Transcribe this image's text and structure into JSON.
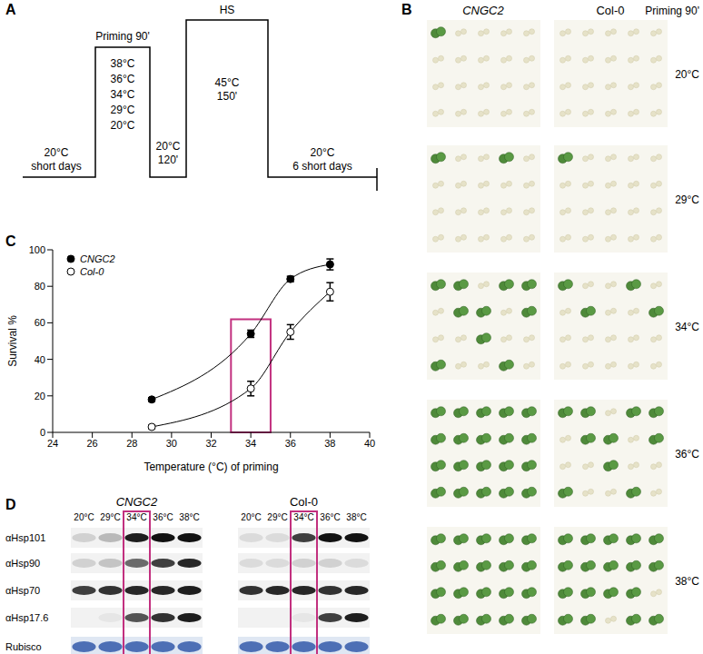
{
  "panel_a": {
    "label": "A",
    "start": [
      "20°C",
      "short days"
    ],
    "priming_title": "Priming 90'",
    "priming_temps": [
      "38°C",
      "36°C",
      "34°C",
      "29°C",
      "20°C"
    ],
    "recovery": [
      "20°C",
      "120'"
    ],
    "hs_title": "HS",
    "hs": [
      "45°C",
      "150'"
    ],
    "end": [
      "20°C",
      "6 short days"
    ]
  },
  "panel_b": {
    "label": "B",
    "columns": [
      "CNGC2",
      "Col-0"
    ],
    "header": "Priming 90'",
    "rows": [
      "20°C",
      "29°C",
      "34°C",
      "36°C",
      "38°C"
    ],
    "green_share": [
      [
        0.05,
        0
      ],
      [
        0.1,
        0.05
      ],
      [
        0.5,
        0.2
      ],
      [
        1,
        0.5
      ],
      [
        1,
        0.9
      ]
    ]
  },
  "panel_c": {
    "label": "C"
  },
  "chart_data": {
    "type": "line",
    "x_label": "Temperature (°C) of priming",
    "y_label": "Survival %",
    "xlim": [
      24,
      40
    ],
    "xticks": [
      24,
      26,
      28,
      30,
      32,
      34,
      36,
      38,
      40
    ],
    "ylim": [
      0,
      100
    ],
    "yticks": [
      0,
      20,
      40,
      60,
      80,
      100
    ],
    "legend": "upper left",
    "x": [
      29,
      34,
      36,
      38
    ],
    "series": [
      {
        "name": "CNGC2",
        "color": "#000000",
        "marker": "circle",
        "values": [
          18,
          54,
          84,
          92
        ],
        "errors": [
          1,
          2,
          1.5,
          3
        ]
      },
      {
        "name": "Col-0",
        "color": "#000000",
        "marker": "open_circle",
        "values": [
          3,
          24,
          55,
          77
        ],
        "errors": [
          1,
          4,
          4,
          5
        ]
      }
    ],
    "highlight": {
      "x": [
        33,
        35
      ],
      "y": [
        0,
        62
      ],
      "color": "#c2307f"
    }
  },
  "panel_d": {
    "label": "D",
    "genotypes": [
      "CNGC2",
      "Col-0"
    ],
    "lanes": [
      "20°C",
      "29°C",
      "34°C",
      "36°C",
      "38°C"
    ],
    "highlight_lane": "34°C",
    "rows": [
      "αHsp101",
      "αHsp90",
      "αHsp70",
      "αHsp17.6",
      "Rubisco"
    ],
    "intensities": [
      [
        [
          0.15,
          0.25,
          0.95,
          1,
          1
        ],
        [
          0.15,
          0.2,
          0.6,
          0.8,
          0.9
        ],
        [
          0.8,
          0.85,
          0.9,
          0.9,
          0.95
        ],
        [
          0,
          0.05,
          0.7,
          0.85,
          0.95
        ],
        [
          1,
          1,
          1,
          1,
          1
        ]
      ],
      [
        [
          0.1,
          0.1,
          0.8,
          1,
          1
        ],
        [
          0.1,
          0.1,
          0.15,
          0.15,
          0.1
        ],
        [
          0.85,
          0.9,
          0.9,
          0.85,
          0.9
        ],
        [
          0,
          0,
          0.05,
          0.8,
          0.95
        ],
        [
          1,
          1,
          1,
          1,
          1
        ]
      ]
    ]
  }
}
